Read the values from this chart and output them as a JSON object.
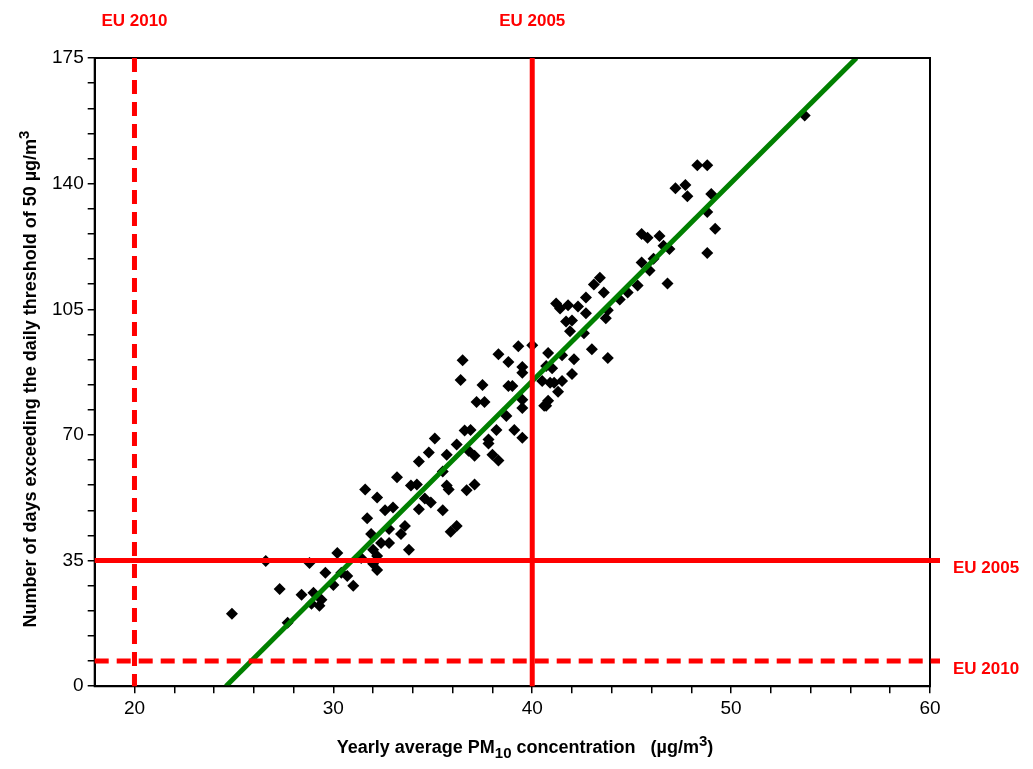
{
  "chart_data": {
    "type": "scatter",
    "xlabel": "Yearly average PM$_{10}$ concentration   (µg/m$^{3}$)",
    "ylabel": "Number of days exceeding the daily threshold of 50 µg/m$^{3}$",
    "xlim": [
      18,
      60
    ],
    "xticks": [
      20,
      {
        "value": 22,
        "label": null
      },
      {
        "value": 24,
        "label": null
      },
      {
        "value": 26,
        "label": null
      },
      {
        "value": 28,
        "label": null
      },
      30,
      {
        "value": 32,
        "label": null
      },
      {
        "value": 34,
        "label": null
      },
      {
        "value": 36,
        "label": null
      },
      {
        "value": 38,
        "label": null
      },
      40,
      {
        "value": 42,
        "label": null
      },
      {
        "value": 44,
        "label": null
      },
      {
        "value": 46,
        "label": null
      },
      {
        "value": 48,
        "label": null
      },
      50,
      {
        "value": 52,
        "label": null
      },
      {
        "value": 54,
        "label": null
      },
      {
        "value": 56,
        "label": null
      },
      {
        "value": 58,
        "label": null
      },
      60
    ],
    "ylim": [
      0,
      175
    ],
    "yticks": [
      0,
      {
        "value": 7,
        "label": null
      },
      {
        "value": 14,
        "label": null
      },
      {
        "value": 21,
        "label": null
      },
      {
        "value": 28,
        "label": null
      },
      35,
      {
        "value": 42,
        "label": null
      },
      {
        "value": 49,
        "label": null
      },
      {
        "value": 56,
        "label": null
      },
      {
        "value": 63,
        "label": null
      },
      70,
      {
        "value": 77,
        "label": null
      },
      {
        "value": 84,
        "label": null
      },
      {
        "value": 91,
        "label": null
      },
      {
        "value": 98,
        "label": null
      },
      105,
      {
        "value": 112,
        "label": null
      },
      {
        "value": 119,
        "label": null
      },
      {
        "value": 126,
        "label": null
      },
      {
        "value": 133,
        "label": null
      },
      140,
      {
        "value": 147,
        "label": null
      },
      {
        "value": 154,
        "label": null
      },
      {
        "value": 161,
        "label": null
      },
      {
        "value": 168,
        "label": null
      },
      175
    ],
    "grid": false,
    "legend": false,
    "series": [
      {
        "marker": "diamond",
        "color": "#000000",
        "x": [
          24.9,
          27.3,
          26.6,
          28.4,
          28.8,
          27.7,
          29.0,
          29.4,
          28.9,
          29.3,
          29.6,
          30.0,
          30.2,
          30.7,
          31.0,
          30.4,
          31.4,
          31.7,
          31.6,
          32.2,
          33.2,
          31.9,
          32.0,
          32.2,
          32.2,
          32.4,
          32.8,
          32.8,
          32.6,
          33.0,
          33.4,
          33.6,
          33.8,
          32.0,
          33.9,
          34.2,
          34.3,
          34.8,
          35.1,
          34.6,
          34.9,
          34.3,
          35.5,
          35.7,
          35.8,
          36.7,
          37.1,
          35.7,
          36.2,
          35.5,
          36.6,
          36.9,
          36.8,
          37.1,
          37.8,
          37.8,
          38.2,
          38.0,
          38.3,
          37.2,
          37.6,
          38.7,
          39.1,
          39.5,
          37.5,
          36.4,
          36.5,
          38.3,
          38.8,
          39.3,
          39.5,
          39.5,
          38.8,
          39.0,
          39.5,
          39.5,
          40.0,
          40.6,
          40.5,
          40.8,
          41.5,
          41.0,
          40.9,
          41.1,
          41.5,
          41.3,
          40.8,
          40.7,
          42.0,
          42.1,
          43.0,
          43.8,
          41.9,
          42.6,
          41.7,
          42.0,
          41.2,
          41.4,
          41.8,
          42.3,
          42.7,
          42.7,
          43.7,
          43.8,
          43.6,
          43.1,
          43.4,
          44.4,
          44.8,
          45.3,
          45.9,
          46.8,
          40.7,
          53.7,
          48.3,
          48.8,
          47.2,
          47.7,
          47.8,
          49.0,
          48.8,
          49.2,
          48.8,
          45.5,
          45.8,
          46.4,
          46.6,
          46.9,
          46.1,
          45.5,
          35.9,
          36.2
        ],
        "values": [
          20.2,
          27.1,
          34.9,
          25.5,
          34.3,
          17.7,
          26.0,
          24.1,
          23.0,
          22.4,
          31.6,
          28.2,
          37.1,
          30.7,
          28.0,
          31.6,
          35.7,
          46.8,
          54.8,
          52.6,
          58.2,
          42.4,
          38.0,
          36.3,
          32.4,
          39.9,
          39.9,
          43.8,
          49.0,
          49.8,
          42.4,
          44.6,
          38.0,
          34.1,
          55.9,
          56.2,
          62.6,
          65.1,
          69.0,
          52.3,
          51.2,
          49.3,
          49.0,
          55.9,
          54.8,
          54.6,
          56.2,
          64.5,
          67.3,
          59.8,
          71.2,
          71.4,
          65.6,
          64.2,
          68.7,
          67.6,
          71.4,
          64.5,
          62.9,
          79.2,
          79.2,
          75.3,
          71.4,
          69.2,
          83.9,
          85.3,
          90.8,
          92.5,
          90.3,
          94.7,
          88.9,
          87.3,
          83.6,
          83.6,
          79.8,
          77.5,
          95.0,
          78.1,
          85.0,
          92.8,
          92.2,
          88.6,
          84.5,
          84.5,
          85.0,
          82.0,
          79.5,
          78.1,
          87.0,
          91.1,
          93.9,
          91.4,
          98.9,
          98.3,
          101.6,
          101.9,
          106.6,
          105.2,
          106.1,
          105.8,
          108.3,
          103.9,
          102.5,
          104.7,
          109.7,
          111.9,
          113.8,
          107.7,
          109.7,
          111.6,
          115.8,
          112.2,
          89.2,
          159.0,
          145.1,
          145.1,
          138.7,
          139.6,
          136.5,
          137.1,
          132.1,
          127.4,
          120.7,
          126.0,
          124.9,
          125.4,
          122.7,
          121.8,
          119.1,
          118.0,
          43.0,
          44.6
        ]
      },
      {
        "type": "line",
        "color": "#008000",
        "x": [
          24.6,
          56.3
        ],
        "values": [
          0,
          175
        ]
      }
    ],
    "ref_lines": [
      {
        "axis": "x",
        "value": 20,
        "label": "EU 2010",
        "color": "#ff0000",
        "line_style": "dashed"
      },
      {
        "axis": "x",
        "value": 40,
        "label": "EU 2005",
        "color": "#ff0000",
        "line_style": "solid"
      },
      {
        "axis": "y",
        "value": 35,
        "label": "EU 2005",
        "color": "#ff0000",
        "line_style": "solid"
      },
      {
        "axis": "y",
        "value": 7,
        "label": "EU 2010",
        "color": "#ff0000",
        "line_style": "dashed"
      }
    ]
  }
}
